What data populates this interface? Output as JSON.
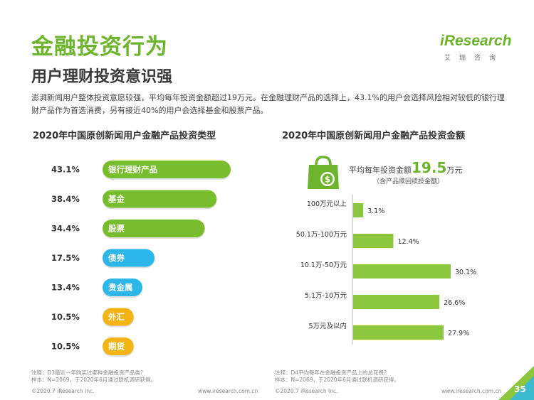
{
  "header": {
    "title": "金融投资行为",
    "subtitle": "用户理财投资意识强",
    "description": "澎湃新闻用户整体投资意愿较强，平均每年投资金额超过19万元。在金融理财产品的选择上，43.1%的用户会选择风险相对较低的银行理财产品作为首选消费，另有接近40%的用户会选择基金和股票产品。"
  },
  "logo": {
    "word": "iResearch",
    "sub": "艾瑞咨询"
  },
  "avg": {
    "prefix": "平均每年投资金额",
    "value": "19.5",
    "unit": "万元",
    "note": "（含产品赎回续投金额）"
  },
  "chart_data": [
    {
      "type": "bar",
      "orientation": "horizontal",
      "title": "2020年中国原创新闻用户金融产品投资类型",
      "categories": [
        "银行理财产品",
        "基金",
        "股票",
        "债券",
        "贵金属",
        "外汇",
        "期货"
      ],
      "values": [
        43.1,
        38.4,
        34.4,
        17.5,
        13.4,
        10.5,
        10.5
      ],
      "value_labels": [
        "43.1%",
        "38.4%",
        "34.4%",
        "17.5%",
        "13.4%",
        "10.5%",
        "10.5%"
      ],
      "unit": "%",
      "colors": [
        "#78bd2d",
        "#78bd2d",
        "#78bd2d",
        "#2db6e8",
        "#2db6e8",
        "#f2b515",
        "#f2b515"
      ]
    },
    {
      "type": "bar",
      "orientation": "horizontal",
      "title": "2020年中国原创新闻用户金融产品投资金额",
      "categories": [
        "100万元以上",
        "50.1万-100万元",
        "10.1万-50万元",
        "5.1万-10万元",
        "5万元及以内"
      ],
      "values": [
        3.1,
        12.4,
        30.1,
        26.6,
        27.9
      ],
      "value_labels": [
        "3.1%",
        "12.4%",
        "30.1%",
        "26.6%",
        "27.9%"
      ],
      "unit": "%",
      "color": "#8cc63f"
    }
  ],
  "notes": {
    "left_q": "注释：D3最近一年购买过哪种金融投资产品类？",
    "left_s": "样本：N=2069，于2020年6月通过联机调研获得。",
    "right_q": "注释：D4平均每年在金融投资产品上的总花费？",
    "right_s": "样本：N=2069，于2020年6月通过联机调研获得。"
  },
  "footer": {
    "copyright": "©2020.7 iResearch Inc.",
    "url": "www.iresearch.com.cn",
    "page": "35"
  },
  "colors": {
    "brand_green": "#6cb42c",
    "blue": "#2db6e8",
    "yellow": "#f2b515"
  }
}
